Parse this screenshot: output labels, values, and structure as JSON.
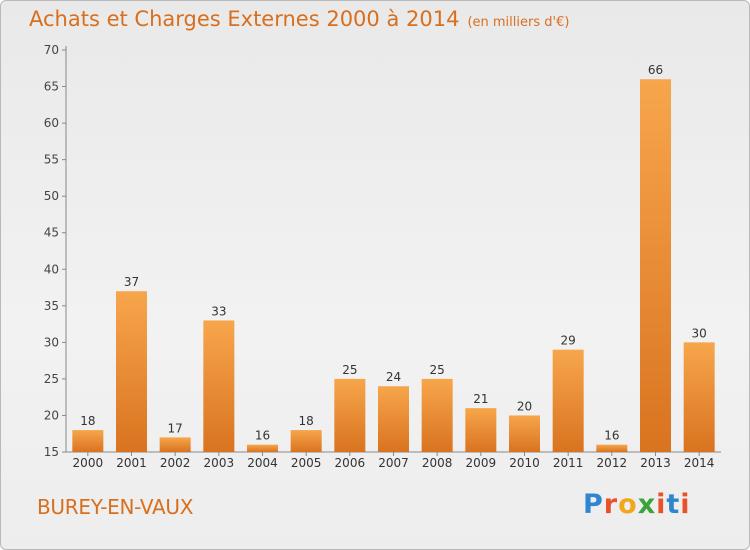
{
  "title": "Achats et Charges Externes 2000 à 2014",
  "unit": "(en milliers d'€)",
  "commune": "BUREY-EN-VAUX",
  "logo": {
    "text": "Proxiti",
    "letter_colors": [
      "#2e86d1",
      "#e8522a",
      "#f2a81d",
      "#3aa33a",
      "#e8522a",
      "#2e86d1",
      "#e8522a"
    ]
  },
  "colors": {
    "bar_top": "#f7a64c",
    "bar_bottom": "#d9731f",
    "title": "#d86f1f"
  },
  "chart_data": {
    "type": "bar",
    "categories": [
      "2000",
      "2001",
      "2002",
      "2003",
      "2004",
      "2005",
      "2006",
      "2007",
      "2008",
      "2009",
      "2010",
      "2011",
      "2012",
      "2013",
      "2014"
    ],
    "values": [
      18,
      37,
      17,
      33,
      16,
      18,
      25,
      24,
      25,
      21,
      20,
      29,
      16,
      66,
      30
    ],
    "ylim": [
      15,
      70
    ],
    "yticks": [
      15,
      20,
      25,
      30,
      35,
      40,
      45,
      50,
      55,
      60,
      65,
      70
    ],
    "grid": false,
    "data_labels": true
  }
}
